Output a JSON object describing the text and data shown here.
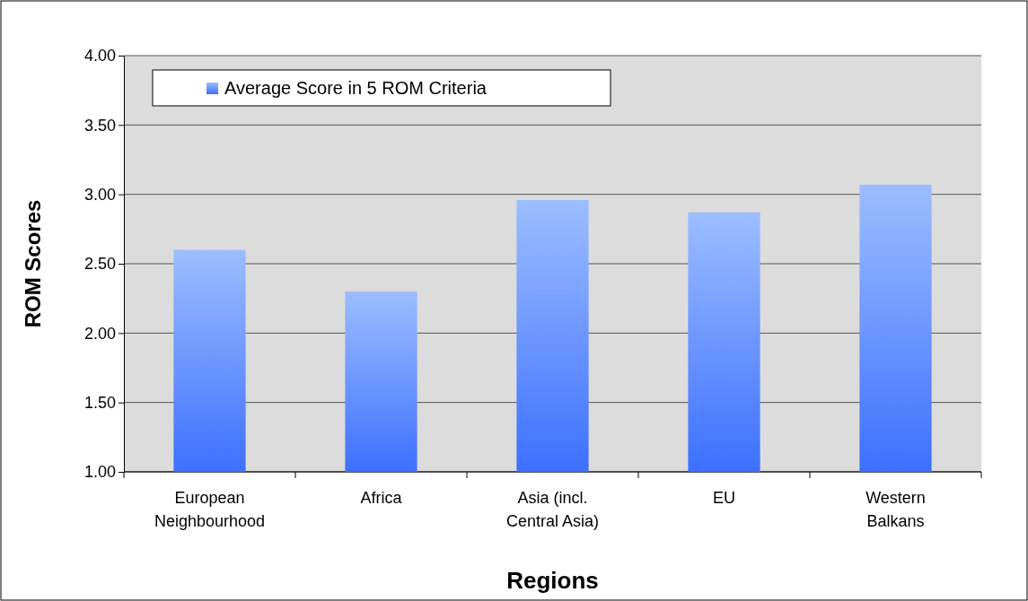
{
  "chart_data": {
    "type": "bar",
    "xlabel": "Regions",
    "ylabel": "ROM Scores",
    "categories": [
      "European Neighbourhood",
      "Africa",
      "Asia (incl. Central Asia)",
      "EU",
      "Western Balkans"
    ],
    "series": [
      {
        "name": "Average Score in 5 ROM Criteria",
        "color": "#6699ff",
        "values": [
          2.6,
          2.3,
          2.96,
          2.87,
          3.07
        ]
      }
    ],
    "ylim": [
      1,
      4
    ],
    "yticks": [
      {
        "value": 1,
        "label": "1.00"
      },
      {
        "value": 1.5,
        "label": "1.50"
      },
      {
        "value": 2,
        "label": "2.00"
      },
      {
        "value": 2.5,
        "label": "2.50"
      },
      {
        "value": 3,
        "label": "3.00"
      },
      {
        "value": 3.5,
        "label": "3.50"
      },
      {
        "value": 4,
        "label": "4.00"
      }
    ],
    "grid": "y",
    "legend": "top left"
  }
}
